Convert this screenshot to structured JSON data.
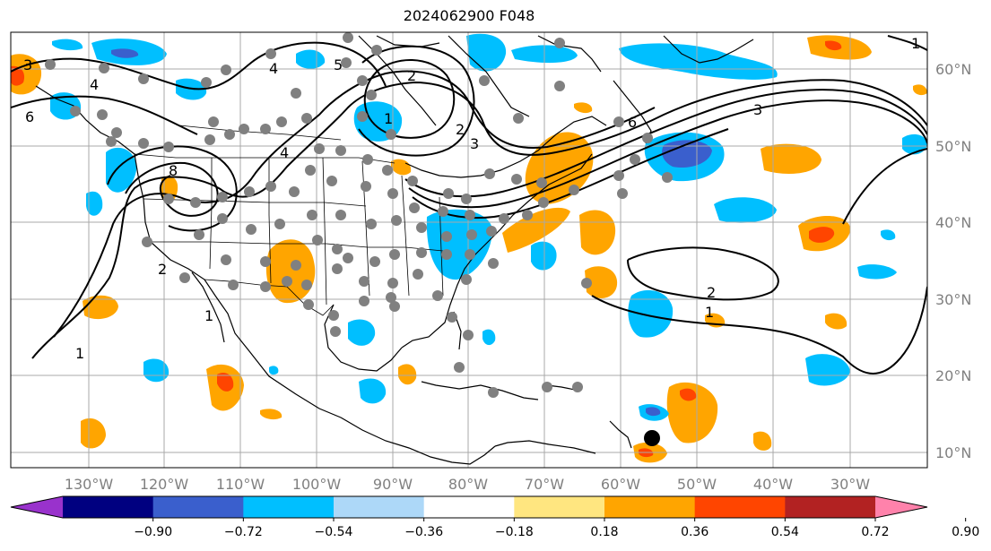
{
  "title": "2024062900 F048",
  "lon_labels": [
    "130°W",
    "120°W",
    "110°W",
    "100°W",
    "90°W",
    "80°W",
    "70°W",
    "60°W",
    "50°W",
    "40°W",
    "30°W"
  ],
  "lat_labels": [
    "10°N",
    "20°N",
    "30°N",
    "40°N",
    "50°N",
    "60°N"
  ],
  "colorbar": {
    "ticks": [
      "−0.90",
      "−0.72",
      "−0.54",
      "−0.36",
      "−0.18",
      "0.18",
      "0.36",
      "0.54",
      "0.72",
      "0.90"
    ],
    "colors": [
      "#9932cc",
      "#000080",
      "#3a5fcd",
      "#00bfff",
      "#add8f8",
      "#ffffff",
      "#ffe680",
      "#ffa500",
      "#ff4500",
      "#b22222",
      "#ff82ab"
    ]
  },
  "contour_labels": [
    "3",
    "4",
    "6",
    "4",
    "5",
    "2",
    "1",
    "2",
    "3",
    "1",
    "2",
    "1",
    "8",
    "4",
    "6",
    "3",
    "2",
    "1",
    "1"
  ],
  "colors": {
    "pos_fill": "#ffa500",
    "pos_strong": "#ff4500",
    "neg_fill": "#00bfff",
    "neg_strong": "#3a5fcd",
    "grid": "#a9a9a9",
    "marker": "#808080"
  }
}
